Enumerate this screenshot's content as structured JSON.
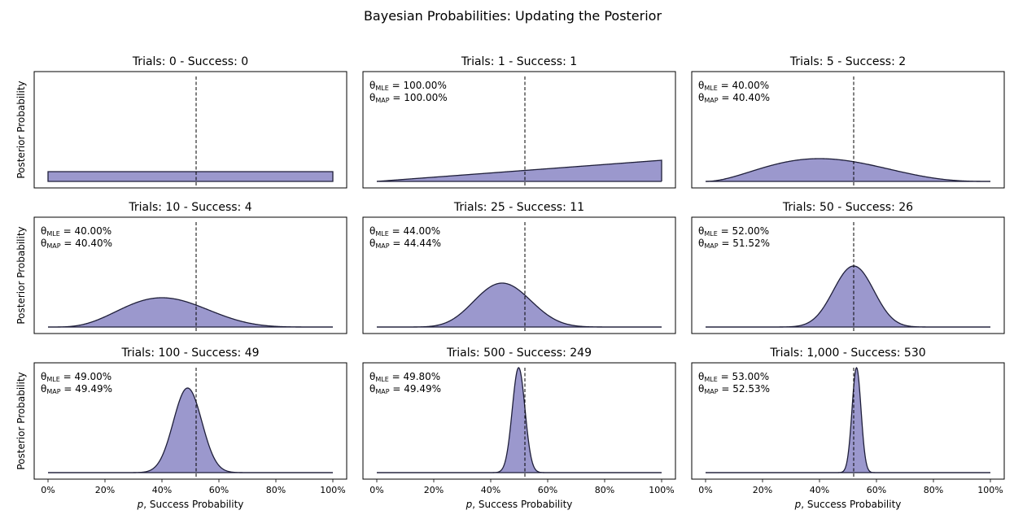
{
  "chart_data": {
    "type": "area",
    "title": "Bayesian Probabilities: Updating the Posterior",
    "fill_color": "#9b98cd",
    "line_color": "#1f1f3a",
    "reference_line_x": 0.52,
    "xlabel": "p, Success Probability",
    "ylabel": "Posterior Probability",
    "xlim": [
      0,
      1
    ],
    "xticks": [
      "0%",
      "20%",
      "40%",
      "60%",
      "80%",
      "100%"
    ],
    "grid": false,
    "panels": [
      {
        "title": "Trials: 0 - Success: 0",
        "trials": 0,
        "successes": 0,
        "mle": "",
        "map": ""
      },
      {
        "title": "Trials: 1 - Success: 1",
        "trials": 1,
        "successes": 1,
        "mle": "100.00%",
        "map": "100.00%"
      },
      {
        "title": "Trials: 5 - Success: 2",
        "trials": 5,
        "successes": 2,
        "mle": "40.00%",
        "map": "40.40%"
      },
      {
        "title": "Trials: 10 - Success: 4",
        "trials": 10,
        "successes": 4,
        "mle": "40.00%",
        "map": "40.40%"
      },
      {
        "title": "Trials: 25 - Success: 11",
        "trials": 25,
        "successes": 11,
        "mle": "44.00%",
        "map": "44.44%"
      },
      {
        "title": "Trials: 50 - Success: 26",
        "trials": 50,
        "successes": 26,
        "mle": "52.00%",
        "map": "51.52%"
      },
      {
        "title": "Trials: 100 - Success: 49",
        "trials": 100,
        "successes": 49,
        "mle": "49.00%",
        "map": "49.49%"
      },
      {
        "title": "Trials: 500 - Success: 249",
        "trials": 500,
        "successes": 249,
        "mle": "49.80%",
        "map": "49.49%"
      },
      {
        "title": "Trials: 1,000 - Success: 530",
        "trials": 1000,
        "successes": 530,
        "mle": "53.00%",
        "map": "52.53%"
      }
    ]
  }
}
